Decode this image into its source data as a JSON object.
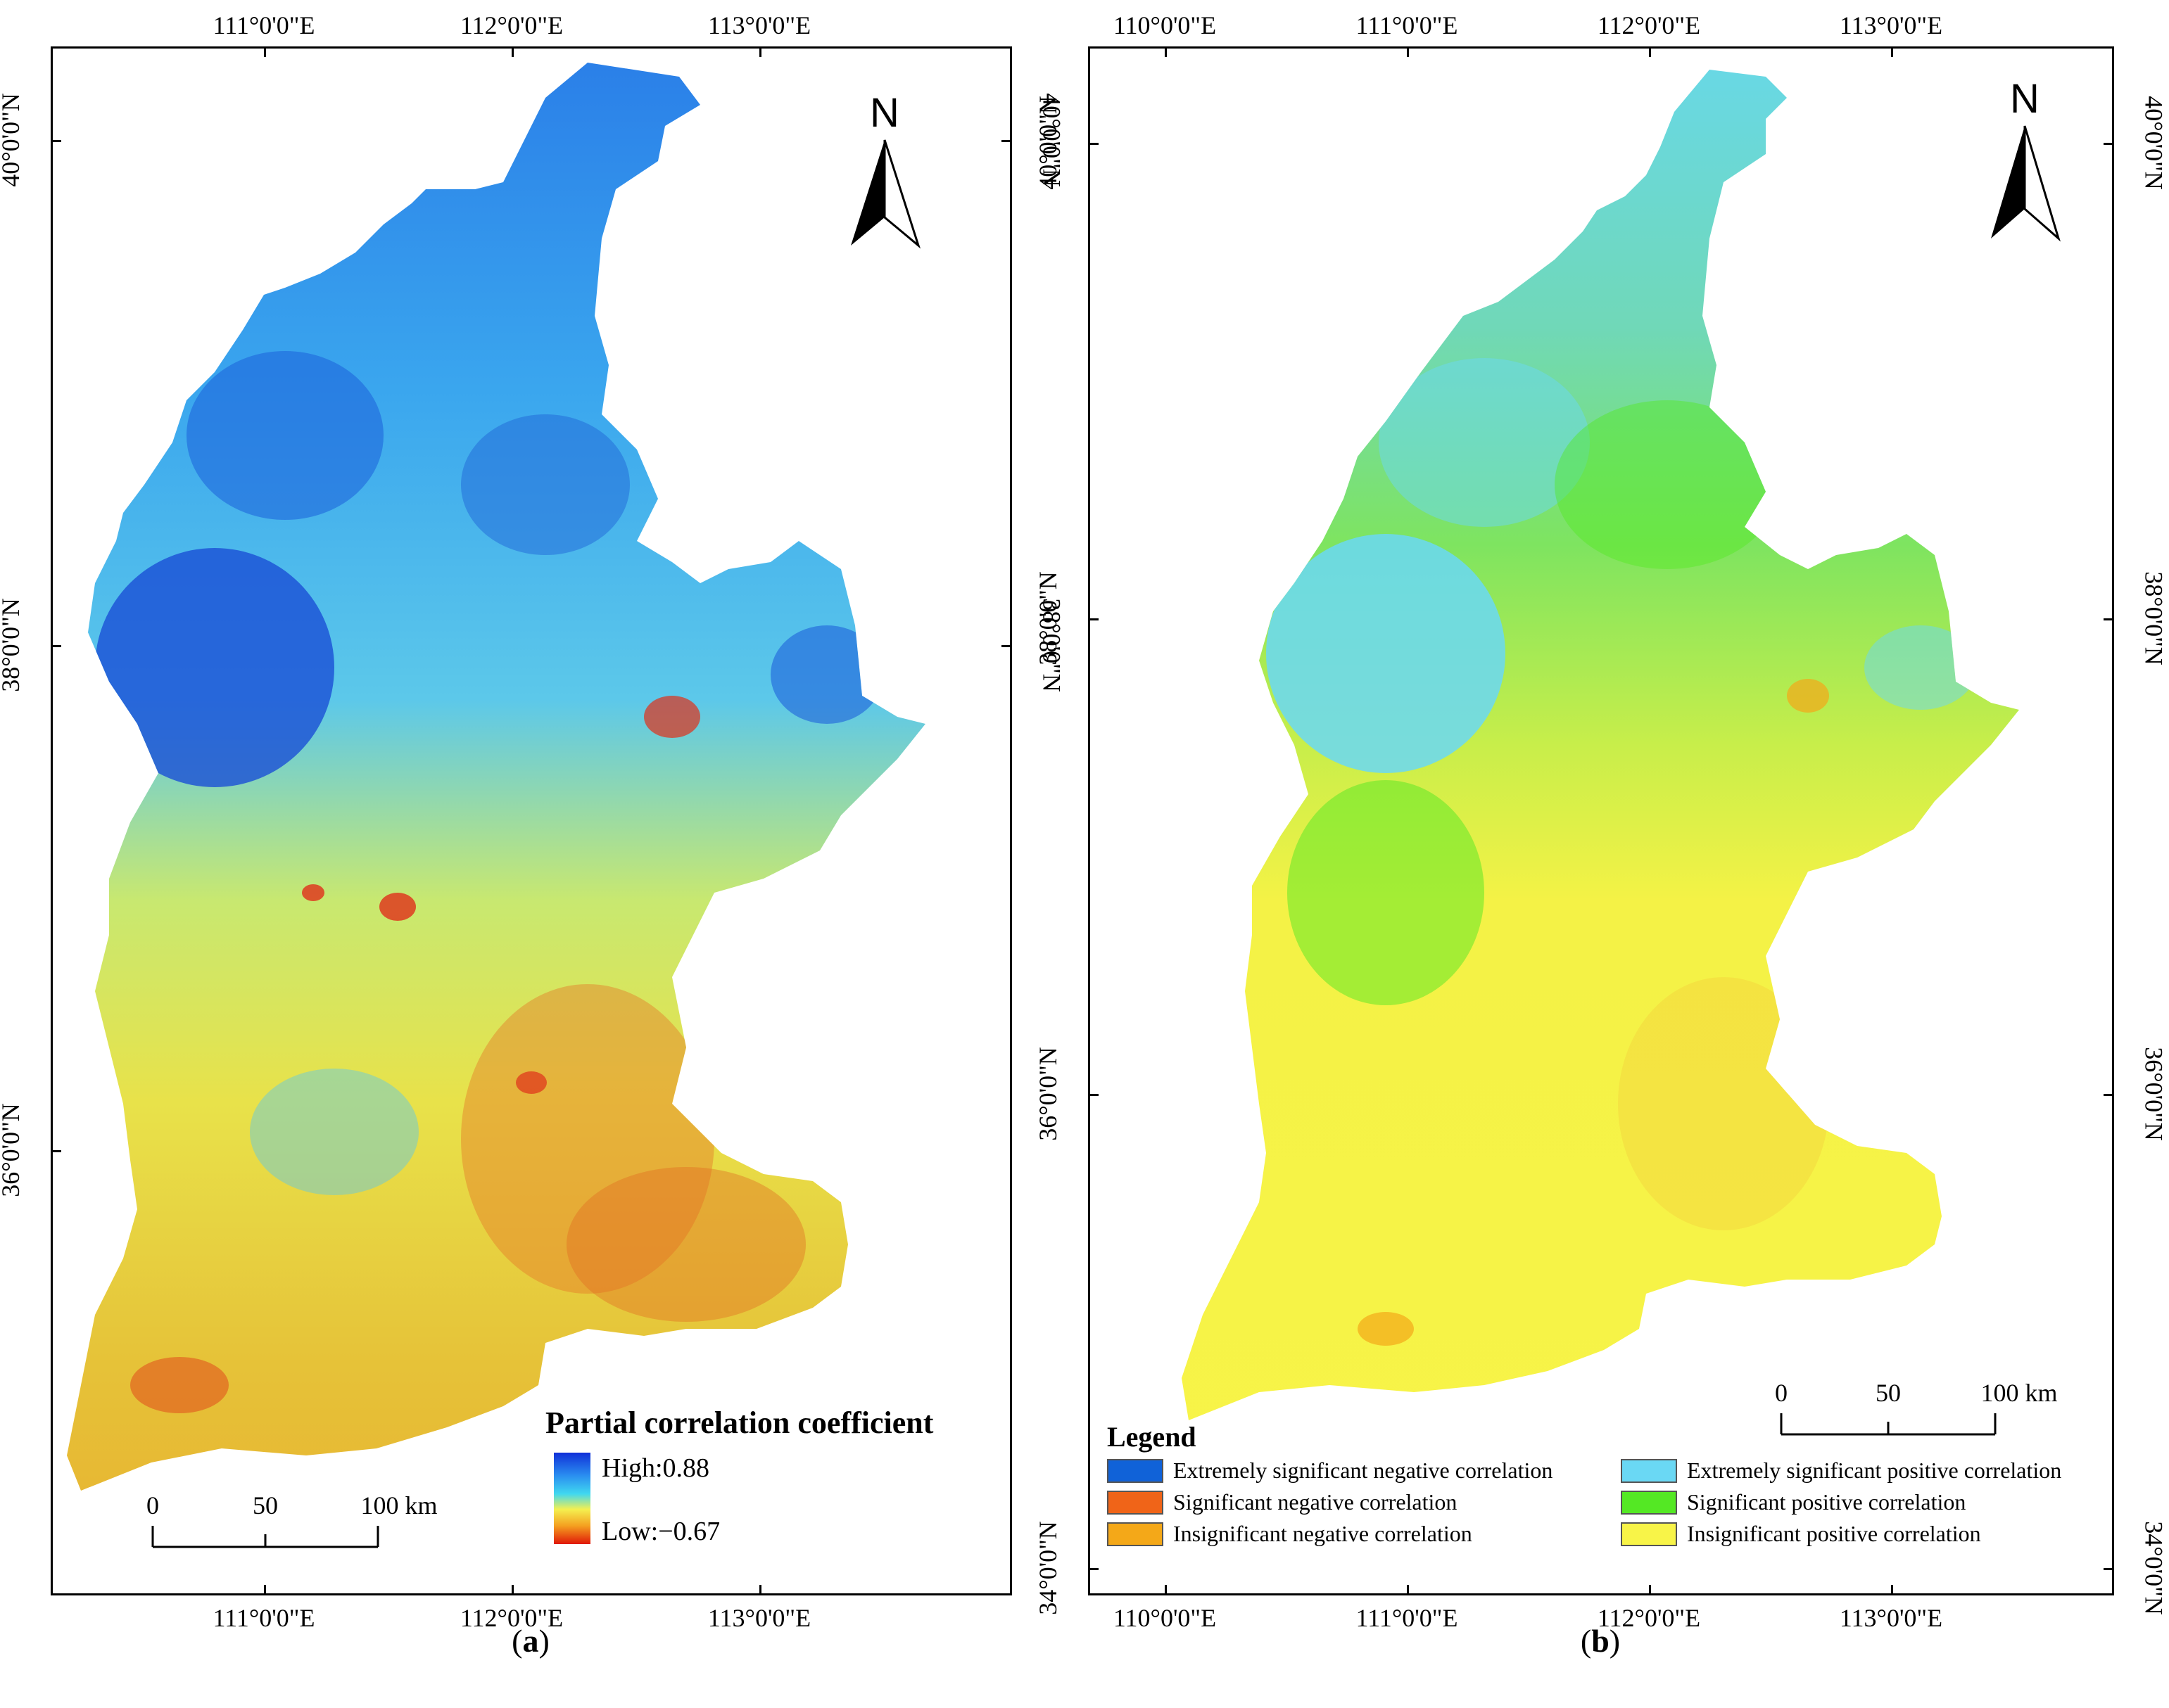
{
  "panel_a": {
    "lon_ticks_top": [
      "111°0'0\"E",
      "112°0'0\"E",
      "113°0'0\"E"
    ],
    "lon_ticks_bottom": [
      "111°0'0\"E",
      "112°0'0\"E",
      "113°0'0\"E"
    ],
    "lat_ticks_left": [
      "40°0'0\"N",
      "38°0'0\"N",
      "36°0'0\"N"
    ],
    "lat_ticks_right": [
      "40°0'0\"N",
      "38°0'0\"N"
    ],
    "north_label": "N",
    "legend": {
      "title": "Partial correlation coefficient",
      "high": "High:0.88",
      "low": "Low:−0.67",
      "gradient": [
        "#1030d8",
        "#2a8ef0",
        "#40d8f0",
        "#f4f050",
        "#f4a020",
        "#e01808"
      ]
    },
    "scale": {
      "labels": [
        "0",
        "50",
        "100 km"
      ]
    },
    "caption": "(a)"
  },
  "panel_b": {
    "lon_ticks_top": [
      "110°0'0\"E",
      "111°0'0\"E",
      "112°0'0\"E",
      "113°0'0\"E"
    ],
    "lon_ticks_bottom": [
      "110°0'0\"E",
      "111°0'0\"E",
      "112°0'0\"E",
      "113°0'0\"E"
    ],
    "lat_ticks_left": [
      "40°0'0\"N",
      "38°0'0\"N",
      "36°0'0\"N",
      "34°0'0\"N"
    ],
    "lat_ticks_right": [
      "40°0'0\"N",
      "38°0'0\"N",
      "36°0'0\"N",
      "34°0'0\"N"
    ],
    "north_label": "N",
    "scale": {
      "labels": [
        "0",
        "50",
        "100 km"
      ]
    },
    "legend": {
      "title": "Legend",
      "items": [
        {
          "label": "Extremely significant negative correlation",
          "color": "#1062d8"
        },
        {
          "label": "Extremely significant positive correlation",
          "color": "#6ad8f4"
        },
        {
          "label": "Significant negative correlation",
          "color": "#f06418"
        },
        {
          "label": "Significant positive correlation",
          "color": "#54e824"
        },
        {
          "label": "Insignificant negative correlation",
          "color": "#f4a818"
        },
        {
          "label": "Insignificant positive correlation",
          "color": "#f8f448"
        }
      ]
    },
    "caption": "(b)"
  }
}
